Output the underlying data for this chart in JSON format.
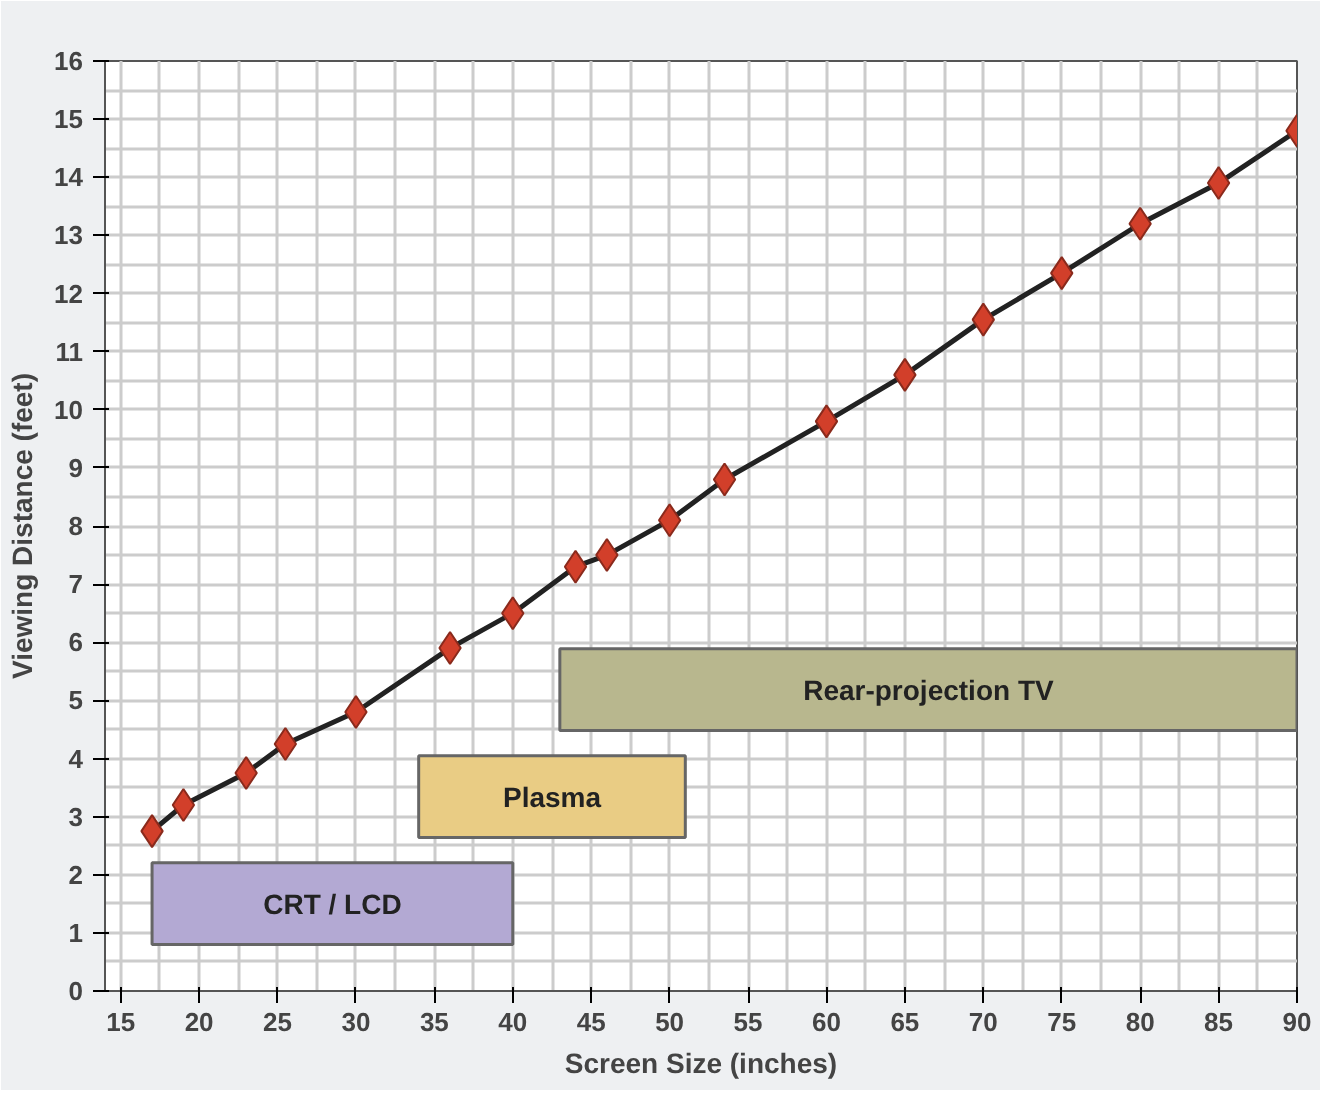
{
  "chart_data": {
    "type": "line",
    "xlabel": "Screen Size (inches)",
    "ylabel": "Viewing Distance (feet)",
    "x": [
      17,
      19,
      23,
      25.5,
      30,
      36,
      40,
      44,
      46,
      50,
      53.5,
      60,
      65,
      70,
      75,
      80,
      85,
      90
    ],
    "series": [
      {
        "color": "#d23f2a",
        "values": [
          2.75,
          3.2,
          3.75,
          4.25,
          4.8,
          5.9,
          6.5,
          7.3,
          7.5,
          8.1,
          8.8,
          9.8,
          10.6,
          11.55,
          12.35,
          13.2,
          13.9,
          14.8
        ]
      }
    ],
    "marker": "diamond",
    "xlim": [
      14,
      90
    ],
    "xticks": [
      15,
      20,
      25,
      30,
      35,
      40,
      45,
      50,
      55,
      60,
      65,
      70,
      75,
      80,
      85,
      90
    ],
    "ylim": [
      0,
      16
    ],
    "yticks": [
      0,
      1,
      2,
      3,
      4,
      5,
      6,
      7,
      8,
      9,
      10,
      11,
      12,
      13,
      14,
      15,
      16
    ],
    "grid": true,
    "bands": [
      {
        "axis": "x",
        "from": 17,
        "to": 40,
        "label": "CRT / LCD",
        "color": "#b3a9d3"
      },
      {
        "axis": "x",
        "from": 34,
        "to": 51,
        "label": "Plasma",
        "color": "#e9cc84"
      },
      {
        "axis": "x",
        "from": 43,
        "to": 90,
        "label": "Rear-projection TV",
        "color": "#b8b78e"
      }
    ]
  }
}
